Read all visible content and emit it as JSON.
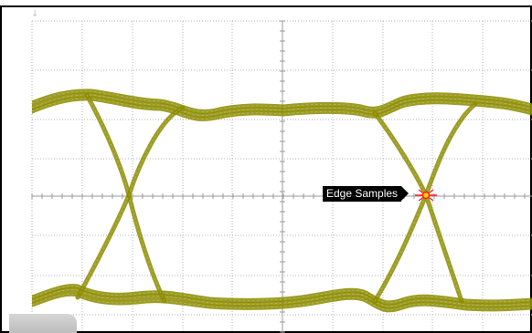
{
  "display": {
    "trace_color": "#8c8c00",
    "grid_color": "#b4b4b4",
    "background": "#ffffff",
    "marker_color": "#ff2020"
  },
  "marker": {
    "label": "Edge Samples",
    "icon": "crosshair-marker-icon"
  },
  "indicators": {
    "top_left_arrow": "↓"
  }
}
